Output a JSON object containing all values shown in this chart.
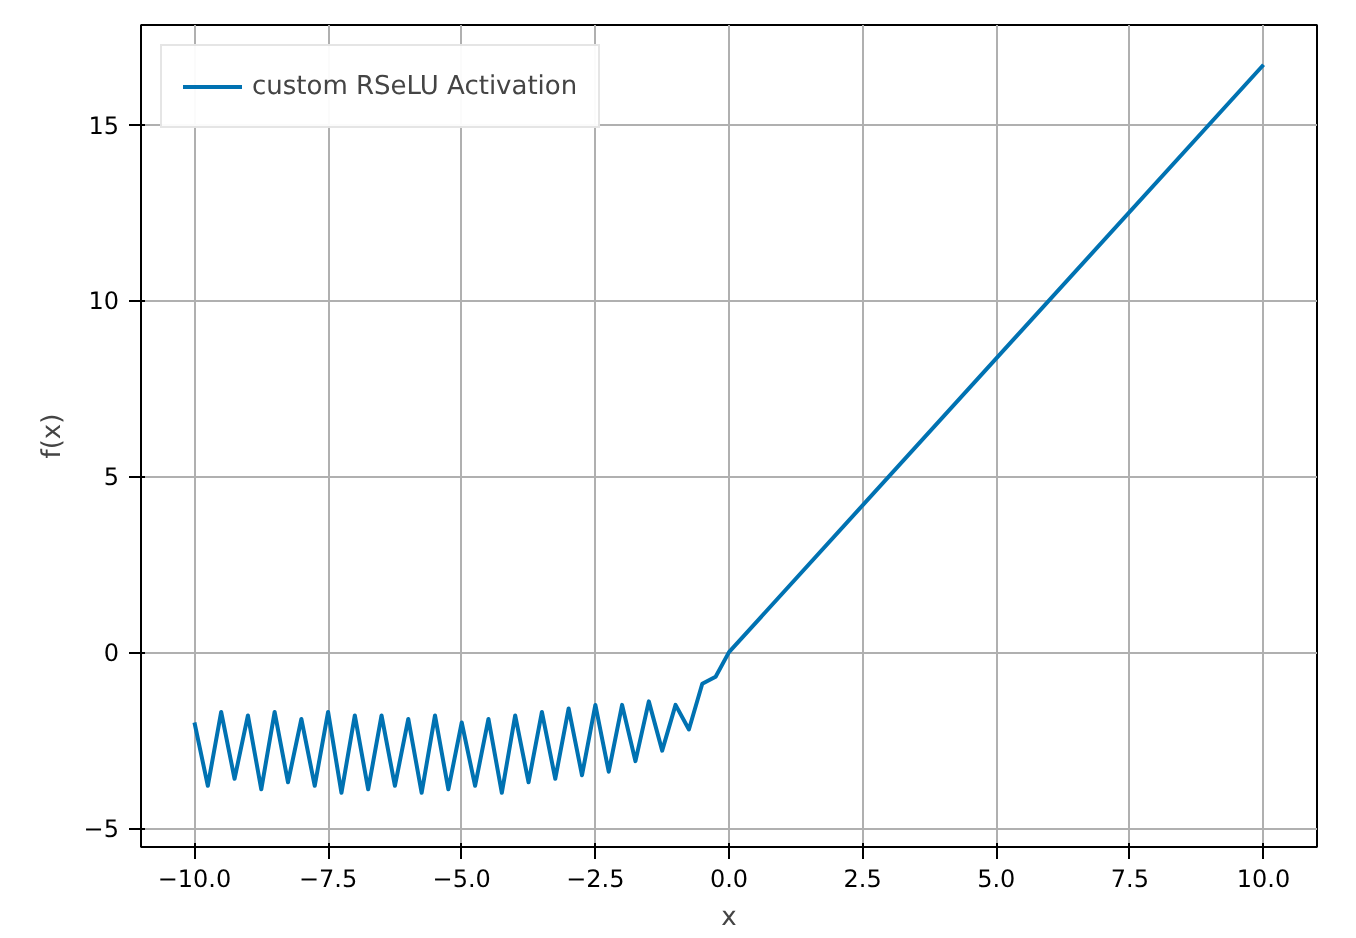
{
  "chart_data": {
    "type": "line",
    "xlabel": "x",
    "ylabel": "f(x)",
    "xlim": [
      -11.0,
      11.0
    ],
    "ylim": [
      -5.54,
      17.83
    ],
    "xticks": [
      {
        "value": -10,
        "label": "−10.0"
      },
      {
        "value": -7.5,
        "label": "−7.5"
      },
      {
        "value": -5,
        "label": "−5.0"
      },
      {
        "value": -2.5,
        "label": "−2.5"
      },
      {
        "value": 0,
        "label": "0.0"
      },
      {
        "value": 2.5,
        "label": "2.5"
      },
      {
        "value": 5,
        "label": "5.0"
      },
      {
        "value": 7.5,
        "label": "7.5"
      },
      {
        "value": 10,
        "label": "10.0"
      }
    ],
    "yticks": [
      {
        "value": -5,
        "label": "−5"
      },
      0,
      5,
      10,
      15
    ],
    "grid": true,
    "legend": "top left",
    "line_style": "solid",
    "series": [
      {
        "name": "custom RSeLU Activation",
        "color": "#0072b2",
        "x": [
          -10,
          -9.75,
          -9.5,
          -9.25,
          -9,
          -8.75,
          -8.5,
          -8.25,
          -8,
          -7.75,
          -7.5,
          -7.25,
          -7,
          -6.75,
          -6.5,
          -6.25,
          -6,
          -5.75,
          -5.5,
          -5.25,
          -5,
          -4.75,
          -4.5,
          -4.25,
          -4,
          -3.75,
          -3.5,
          -3.25,
          -3,
          -2.75,
          -2.5,
          -2.25,
          -2,
          -1.75,
          -1.5,
          -1.25,
          -1,
          -0.75,
          -0.5,
          -0.25,
          0,
          10
        ],
        "values": [
          -2.0,
          -3.8,
          -1.7,
          -3.6,
          -1.8,
          -3.9,
          -1.7,
          -3.7,
          -1.9,
          -3.8,
          -1.7,
          -4.0,
          -1.8,
          -3.9,
          -1.8,
          -3.8,
          -1.9,
          -4.0,
          -1.8,
          -3.9,
          -2.0,
          -3.8,
          -1.9,
          -4.0,
          -1.8,
          -3.7,
          -1.7,
          -3.6,
          -1.6,
          -3.5,
          -1.5,
          -3.4,
          -1.5,
          -3.1,
          -1.4,
          -2.8,
          -1.5,
          -2.2,
          -0.9,
          -0.7,
          0,
          16.7
        ]
      }
    ]
  }
}
